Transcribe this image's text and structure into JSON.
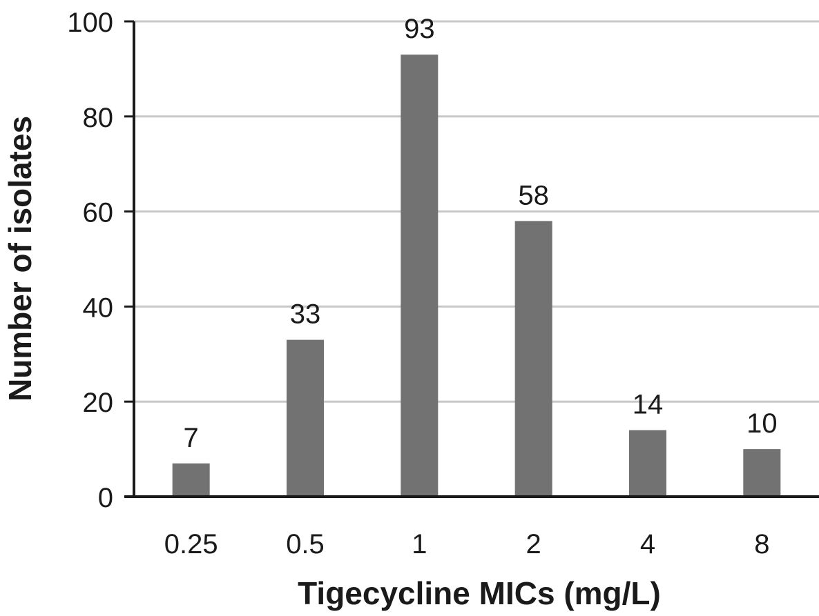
{
  "chart_data": {
    "type": "bar",
    "title": "",
    "xlabel": "Tigecycline MICs (mg/L)",
    "ylabel": "Number of isolates",
    "categories": [
      "0.25",
      "0.5",
      "1",
      "2",
      "4",
      "8"
    ],
    "values": [
      7,
      33,
      93,
      58,
      14,
      10
    ],
    "data_labels": [
      "7",
      "33",
      "93",
      "58",
      "14",
      "10"
    ],
    "ylim": [
      0,
      100
    ],
    "yticks": [
      0,
      20,
      40,
      60,
      80,
      100
    ],
    "grid": true,
    "legend": "none",
    "colors": {
      "bar": "#737272",
      "gridline": "#c8c8c8",
      "axis": "#1a1a1a",
      "text": "#1a1a1a"
    }
  }
}
